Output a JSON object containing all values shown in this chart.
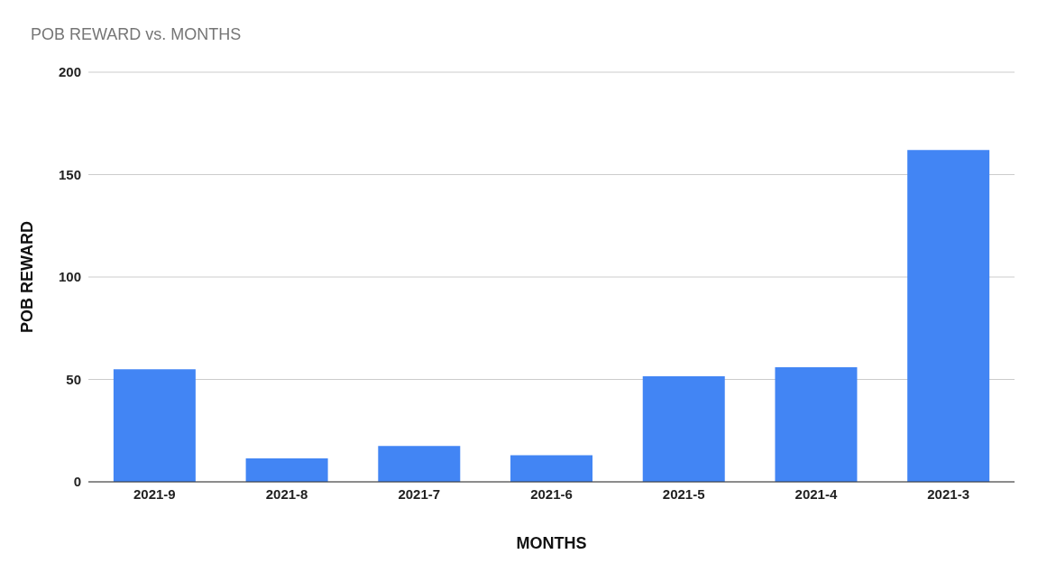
{
  "chart_data": {
    "type": "bar",
    "title": "POB REWARD vs. MONTHS",
    "xlabel": "MONTHS",
    "ylabel": "POB REWARD",
    "categories": [
      "2021-9",
      "2021-8",
      "2021-7",
      "2021-6",
      "2021-5",
      "2021-4",
      "2021-3"
    ],
    "values": [
      55,
      11.5,
      17.5,
      13,
      51.5,
      56,
      162
    ],
    "color": "#4285f4",
    "ylim": [
      0,
      200
    ],
    "yticks": [
      0,
      50,
      100,
      150,
      200
    ],
    "grid": "y"
  }
}
